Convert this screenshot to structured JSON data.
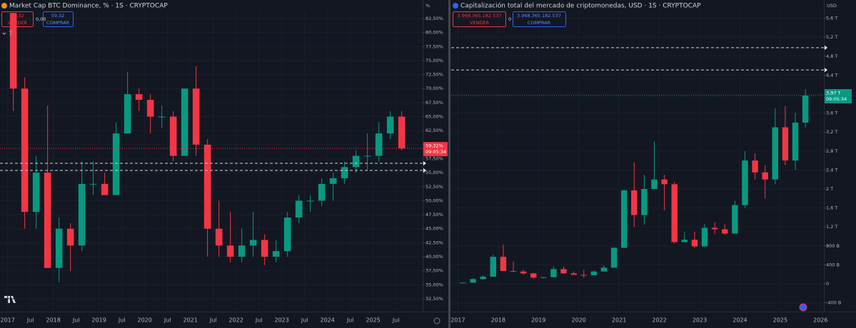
{
  "chart_data": [
    {
      "type": "candlestick",
      "title": "Market Cap BTC Dominance, % · 1S · CRYPTOCAP",
      "axis_unit": "%",
      "indicators": "7",
      "quote": {
        "bid": "59,32",
        "bid_label": "VENDER",
        "spread": "0,00",
        "ask": "59,32",
        "ask_label": "COMPRAR"
      },
      "up_color": "#089981",
      "down_color": "#f23645",
      "x": [
        "2017-01",
        "2017-04",
        "2017-07",
        "2017-10",
        "2018-01",
        "2018-04",
        "2018-07",
        "2018-10",
        "2019-01",
        "2019-04",
        "2019-07",
        "2019-10",
        "2020-01",
        "2020-04",
        "2020-07",
        "2020-10",
        "2021-01",
        "2021-04",
        "2021-07",
        "2021-10",
        "2022-01",
        "2022-04",
        "2022-07",
        "2022-10",
        "2023-01",
        "2023-04",
        "2023-07",
        "2023-10",
        "2024-01",
        "2024-04",
        "2024-07",
        "2024-10",
        "2025-01",
        "2025-04",
        "2025-07"
      ],
      "open": [
        83.5,
        70,
        48,
        55,
        38,
        45,
        42,
        53,
        53,
        51,
        62,
        69,
        68,
        65,
        65,
        58,
        70,
        60,
        45,
        42,
        40,
        42,
        43,
        40,
        41,
        47,
        50,
        50,
        53,
        54,
        56,
        58,
        58,
        62,
        65
      ],
      "high": [
        83.5,
        72,
        58,
        67,
        47,
        46,
        57,
        57,
        55,
        64,
        73,
        70,
        69,
        67,
        66,
        70,
        74,
        61,
        50,
        48,
        45,
        48,
        44,
        43,
        48,
        51,
        51,
        54,
        55,
        57,
        59,
        62,
        64,
        66,
        66
      ],
      "low": [
        66,
        45,
        45,
        38,
        35.5,
        37.5,
        41,
        51,
        51,
        51,
        62,
        66,
        62,
        63,
        57,
        58,
        58,
        40,
        40,
        39,
        39,
        40,
        38.5,
        39,
        40,
        46,
        48,
        49,
        50,
        53,
        55,
        55.5,
        57,
        61,
        59
      ],
      "close": [
        70,
        48,
        55,
        38,
        45,
        42,
        53,
        53,
        51,
        62,
        69,
        68,
        65,
        65,
        58,
        70,
        60,
        45,
        42,
        40,
        42,
        43,
        40,
        41,
        47,
        50,
        50,
        53,
        54,
        56,
        58,
        58,
        62,
        65,
        59.32
      ],
      "price": {
        "value": 59.32,
        "label": "59,32%",
        "time": "09:05:34",
        "color": "#f23645"
      },
      "h_lines": [
        56.67,
        55.4
      ],
      "xlim": [
        "2016-11",
        "2026-02"
      ],
      "xticks": [
        {
          "value": "2017-01",
          "label": "2017"
        },
        {
          "value": "2017-07",
          "label": "Jul"
        },
        {
          "value": "2018-01",
          "label": "2018"
        },
        {
          "value": "2018-07",
          "label": "Jul"
        },
        {
          "value": "2019-01",
          "label": "2019"
        },
        {
          "value": "2019-07",
          "label": "Jul"
        },
        {
          "value": "2020-01",
          "label": "2020"
        },
        {
          "value": "2020-07",
          "label": "Jul"
        },
        {
          "value": "2021-01",
          "label": "2021"
        },
        {
          "value": "2021-07",
          "label": "Jul"
        },
        {
          "value": "2022-01",
          "label": "2022"
        },
        {
          "value": "2022-07",
          "label": "Jul"
        },
        {
          "value": "2023-01",
          "label": "2023"
        },
        {
          "value": "2023-07",
          "label": "Jul"
        },
        {
          "value": "2024-01",
          "label": "2024"
        },
        {
          "value": "2024-07",
          "label": "Jul"
        },
        {
          "value": "2025-01",
          "label": "2025"
        },
        {
          "value": "2025-07",
          "label": "Jul"
        }
      ],
      "ylim": [
        30.21,
        83.77
      ],
      "yticks": [
        {
          "value": 32.5,
          "label": "32,50%"
        },
        {
          "value": 35,
          "label": "35,00%"
        },
        {
          "value": 37.5,
          "label": "37,50%"
        },
        {
          "value": 40,
          "label": "40,00%"
        },
        {
          "value": 42.5,
          "label": "42,50%"
        },
        {
          "value": 45,
          "label": "45,00%"
        },
        {
          "value": 47.5,
          "label": "47,50%"
        },
        {
          "value": 50,
          "label": "50,00%"
        },
        {
          "value": 52.5,
          "label": "52,50%"
        },
        {
          "value": 55,
          "label": "55,00%"
        },
        {
          "value": 57.5,
          "label": "57,50%"
        },
        {
          "value": 60,
          "label": "60,00%"
        },
        {
          "value": 62.5,
          "label": "62,50%"
        },
        {
          "value": 65,
          "label": "65,00%"
        },
        {
          "value": 67.5,
          "label": "67,50%"
        },
        {
          "value": 70,
          "label": "70,00%"
        },
        {
          "value": 72.5,
          "label": "72,50%"
        },
        {
          "value": 75,
          "label": "75,00%"
        },
        {
          "value": 77.5,
          "label": "77,50%"
        },
        {
          "value": 80,
          "label": "80,00%"
        },
        {
          "value": 82.5,
          "label": "82,50%"
        }
      ]
    },
    {
      "type": "candlestick",
      "title": "Capitalización total del mercado de criptomonedas, USD · 1S · CRYPTOCAP",
      "axis_unit": "USD",
      "quote": {
        "bid": "3.968.365.182.537",
        "bid_label": "VENDER",
        "spread": "0",
        "ask": "3.968.365.182.537",
        "ask_label": "COMPRAR"
      },
      "up_color": "#089981",
      "down_color": "#f23645",
      "x": [
        "2017-01",
        "2017-04",
        "2017-07",
        "2017-10",
        "2018-01",
        "2018-04",
        "2018-07",
        "2018-10",
        "2019-01",
        "2019-04",
        "2019-07",
        "2019-10",
        "2020-01",
        "2020-04",
        "2020-07",
        "2020-10",
        "2021-01",
        "2021-04",
        "2021-07",
        "2021-10",
        "2022-01",
        "2022-04",
        "2022-07",
        "2022-10",
        "2023-01",
        "2023-04",
        "2023-07",
        "2023-10",
        "2024-01",
        "2024-04",
        "2024-07",
        "2024-10",
        "2025-01",
        "2025-04",
        "2025-07"
      ],
      "open": [
        0.018,
        0.025,
        0.1,
        0.15,
        0.57,
        0.27,
        0.26,
        0.22,
        0.13,
        0.14,
        0.31,
        0.22,
        0.19,
        0.18,
        0.26,
        0.34,
        0.76,
        1.97,
        1.45,
        2.0,
        2.2,
        2.1,
        0.88,
        0.93,
        0.79,
        1.18,
        1.15,
        1.06,
        1.66,
        2.6,
        2.35,
        2.2,
        3.3,
        2.6,
        3.4
      ],
      "high": [
        0.025,
        0.12,
        0.18,
        0.62,
        0.83,
        0.47,
        0.3,
        0.23,
        0.14,
        0.37,
        0.36,
        0.26,
        0.3,
        0.28,
        0.39,
        0.77,
        1.99,
        2.56,
        2.3,
        3.0,
        2.3,
        2.15,
        1.1,
        1.1,
        1.26,
        1.3,
        1.26,
        1.75,
        2.8,
        2.75,
        2.5,
        3.7,
        3.75,
        3.6,
        4.1
      ],
      "low": [
        0.017,
        0.025,
        0.09,
        0.15,
        0.27,
        0.25,
        0.19,
        0.1,
        0.11,
        0.14,
        0.21,
        0.19,
        0.13,
        0.18,
        0.26,
        0.34,
        0.75,
        1.2,
        1.25,
        2.0,
        1.55,
        0.85,
        0.88,
        0.75,
        0.78,
        1.05,
        1.03,
        1.06,
        1.6,
        2.2,
        1.8,
        2.1,
        2.5,
        2.4,
        3.3
      ],
      "close": [
        0.025,
        0.1,
        0.15,
        0.57,
        0.27,
        0.26,
        0.22,
        0.13,
        0.14,
        0.31,
        0.22,
        0.19,
        0.18,
        0.26,
        0.34,
        0.76,
        1.97,
        1.45,
        2.0,
        2.2,
        2.1,
        0.88,
        0.93,
        0.79,
        1.18,
        1.15,
        1.06,
        1.66,
        2.6,
        2.35,
        2.2,
        3.3,
        2.6,
        3.4,
        3.97
      ],
      "price": {
        "value": 3.97,
        "label": "3,97 T",
        "time": "09:05:34",
        "color": "#089981"
      },
      "h_lines": [
        4.98,
        4.51
      ],
      "xlim": [
        "2016-11",
        "2026-02"
      ],
      "xticks": [
        {
          "value": "2017-01",
          "label": "2017"
        },
        {
          "value": "2018-01",
          "label": "2018"
        },
        {
          "value": "2019-01",
          "label": "2019"
        },
        {
          "value": "2020-01",
          "label": "2020"
        },
        {
          "value": "2021-01",
          "label": "2021"
        },
        {
          "value": "2022-01",
          "label": "2022"
        },
        {
          "value": "2023-01",
          "label": "2023"
        },
        {
          "value": "2024-01",
          "label": "2024"
        },
        {
          "value": "2025-01",
          "label": "2025"
        },
        {
          "value": "2026-01",
          "label": "2026"
        }
      ],
      "ylim": [
        -0.586,
        5.744
      ],
      "yticks": [
        {
          "value": -0.4,
          "label": "-400 B"
        },
        0,
        {
          "value": 0.4,
          "label": "400 B"
        },
        {
          "value": 0.8,
          "label": "800 B"
        },
        {
          "value": 1.2,
          "label": "1,2 T"
        },
        {
          "value": 1.6,
          "label": "1,6 T"
        },
        {
          "value": 2,
          "label": "2 T"
        },
        {
          "value": 2.4,
          "label": "2,4 T"
        },
        {
          "value": 2.8,
          "label": "2,8 T"
        },
        {
          "value": 3.2,
          "label": "3,2 T"
        },
        {
          "value": 3.6,
          "label": "3,6 T"
        },
        {
          "value": 4,
          "label": "4 T"
        },
        {
          "value": 4.4,
          "label": "4,4 T"
        },
        {
          "value": 4.8,
          "label": "4,8 T"
        },
        {
          "value": 5.2,
          "label": "5,2 T"
        },
        {
          "value": 5.6,
          "label": "5,6 T"
        }
      ]
    }
  ]
}
